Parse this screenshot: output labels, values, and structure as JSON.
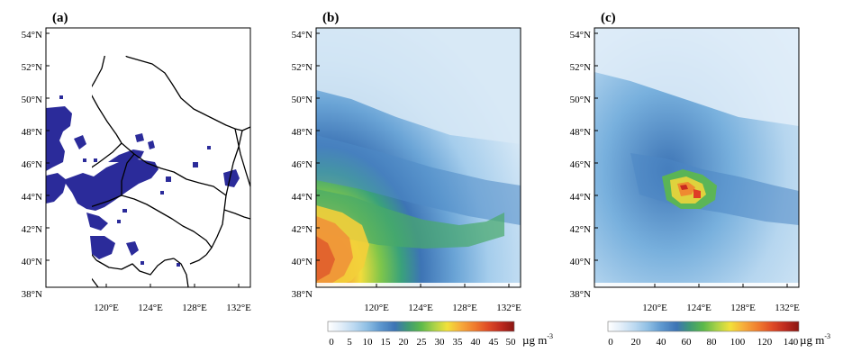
{
  "panels": [
    {
      "label": "(a)"
    },
    {
      "label": "(b)"
    },
    {
      "label": "(c)"
    }
  ],
  "lat_ticks": [
    "54°N",
    "52°N",
    "50°N",
    "48°N",
    "46°N",
    "44°N",
    "42°N",
    "40°N",
    "38°N"
  ],
  "lon_ticks": [
    "120°E",
    "124°E",
    "128°E",
    "132°E"
  ],
  "colorbar_b": {
    "ticks": [
      "0",
      "5",
      "10",
      "15",
      "20",
      "25",
      "30",
      "35",
      "40",
      "45",
      "50"
    ],
    "unit_main": "µg m",
    "unit_sup": "-3"
  },
  "colorbar_c": {
    "ticks": [
      "0",
      "20",
      "40",
      "60",
      "80",
      "100",
      "120",
      "140"
    ],
    "unit_main": "µg m",
    "unit_sup": "-3"
  },
  "colors": {
    "fire_points": "#2b2b9a",
    "colorbar_stops": [
      "#ffffff",
      "#e2eef9",
      "#bcd9f1",
      "#8fbfe4",
      "#5e98cf",
      "#3d74b5",
      "#3f9a74",
      "#5cb94a",
      "#a9d247",
      "#f2e13a",
      "#f7ad3b",
      "#ef7a2e",
      "#df4b26",
      "#bd2a1f",
      "#8a1612"
    ]
  }
}
